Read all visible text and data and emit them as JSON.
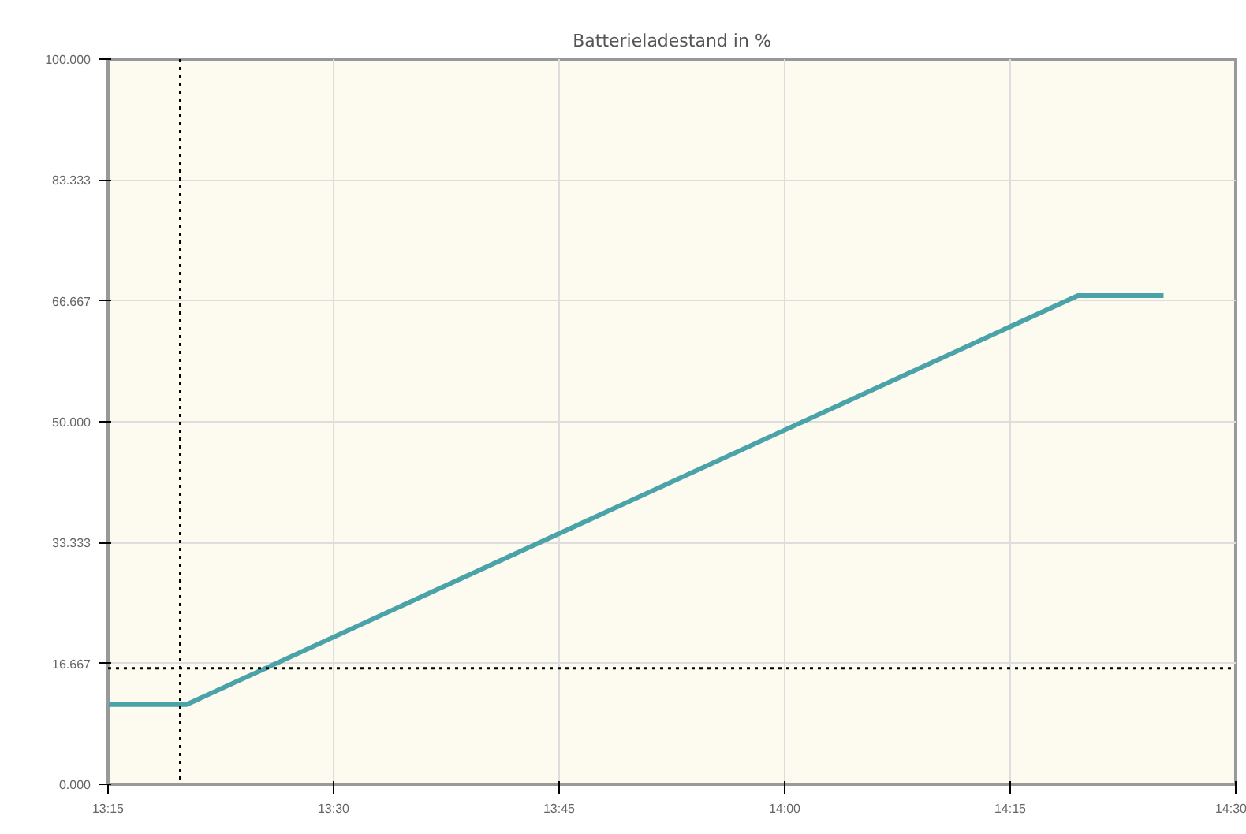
{
  "chart_data": {
    "type": "line",
    "title": "Batterieladestand in %",
    "x": [
      13.25,
      13.337,
      14.325,
      14.42
    ],
    "series": [
      {
        "color": "#4aa3a8",
        "values": [
          11,
          11,
          67.4,
          67.4
        ]
      }
    ],
    "xlim": [
      13.25,
      14.5
    ],
    "xticks": [
      {
        "value": 13.25,
        "label": "13:15"
      },
      {
        "value": 13.5,
        "label": "13:30"
      },
      {
        "value": 13.75,
        "label": "13:45"
      },
      {
        "value": 14.0,
        "label": "14:00"
      },
      {
        "value": 14.25,
        "label": "14:15"
      },
      {
        "value": 14.5,
        "label": "14:30"
      }
    ],
    "ylim": [
      0,
      100
    ],
    "yticks": [
      {
        "value": 0,
        "label": "0.000"
      },
      {
        "value": 16.667,
        "label": "16.667"
      },
      {
        "value": 33.333,
        "label": "33.333"
      },
      {
        "value": 50,
        "label": "50.000"
      },
      {
        "value": 66.667,
        "label": "66.667"
      },
      {
        "value": 83.333,
        "label": "83.333"
      },
      {
        "value": 100,
        "label": "100.000"
      }
    ],
    "grid": true,
    "line_style": "solid",
    "ref_lines": [
      {
        "axis": "x",
        "value": 13.33,
        "color": "#000000",
        "line_style": "dotted"
      },
      {
        "axis": "y",
        "value": 16,
        "color": "#000000",
        "line_style": "dotted"
      }
    ]
  }
}
